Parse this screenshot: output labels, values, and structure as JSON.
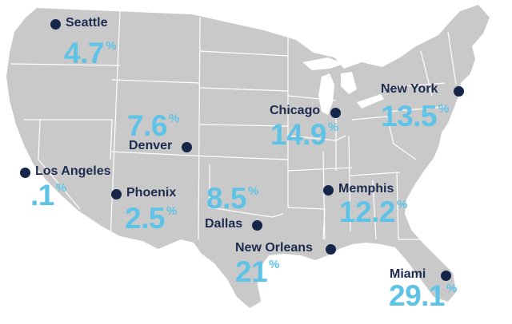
{
  "colors": {
    "land": "#c9c9c9",
    "borders": "#ffffff",
    "dot": "#16254a",
    "label": "#1d2b4f",
    "value": "#5ec3e6"
  },
  "unit": "%",
  "cities": [
    {
      "id": "seattle",
      "name": "Seattle",
      "value": "4.7"
    },
    {
      "id": "chicago",
      "name": "Chicago",
      "value": "14.9"
    },
    {
      "id": "new-york",
      "name": "New York",
      "value": "13.5"
    },
    {
      "id": "denver",
      "name": "Denver",
      "value": "7.6"
    },
    {
      "id": "los-angeles",
      "name": "Los Angeles",
      "value": ".1"
    },
    {
      "id": "phoenix",
      "name": "Phoenix",
      "value": "2.5"
    },
    {
      "id": "dallas",
      "name": "Dallas",
      "value": "8.5"
    },
    {
      "id": "memphis",
      "name": "Memphis",
      "value": "12.2"
    },
    {
      "id": "new-orleans",
      "name": "New Orleans",
      "value": "21"
    },
    {
      "id": "miami",
      "name": "Miami",
      "value": "29.1"
    }
  ]
}
